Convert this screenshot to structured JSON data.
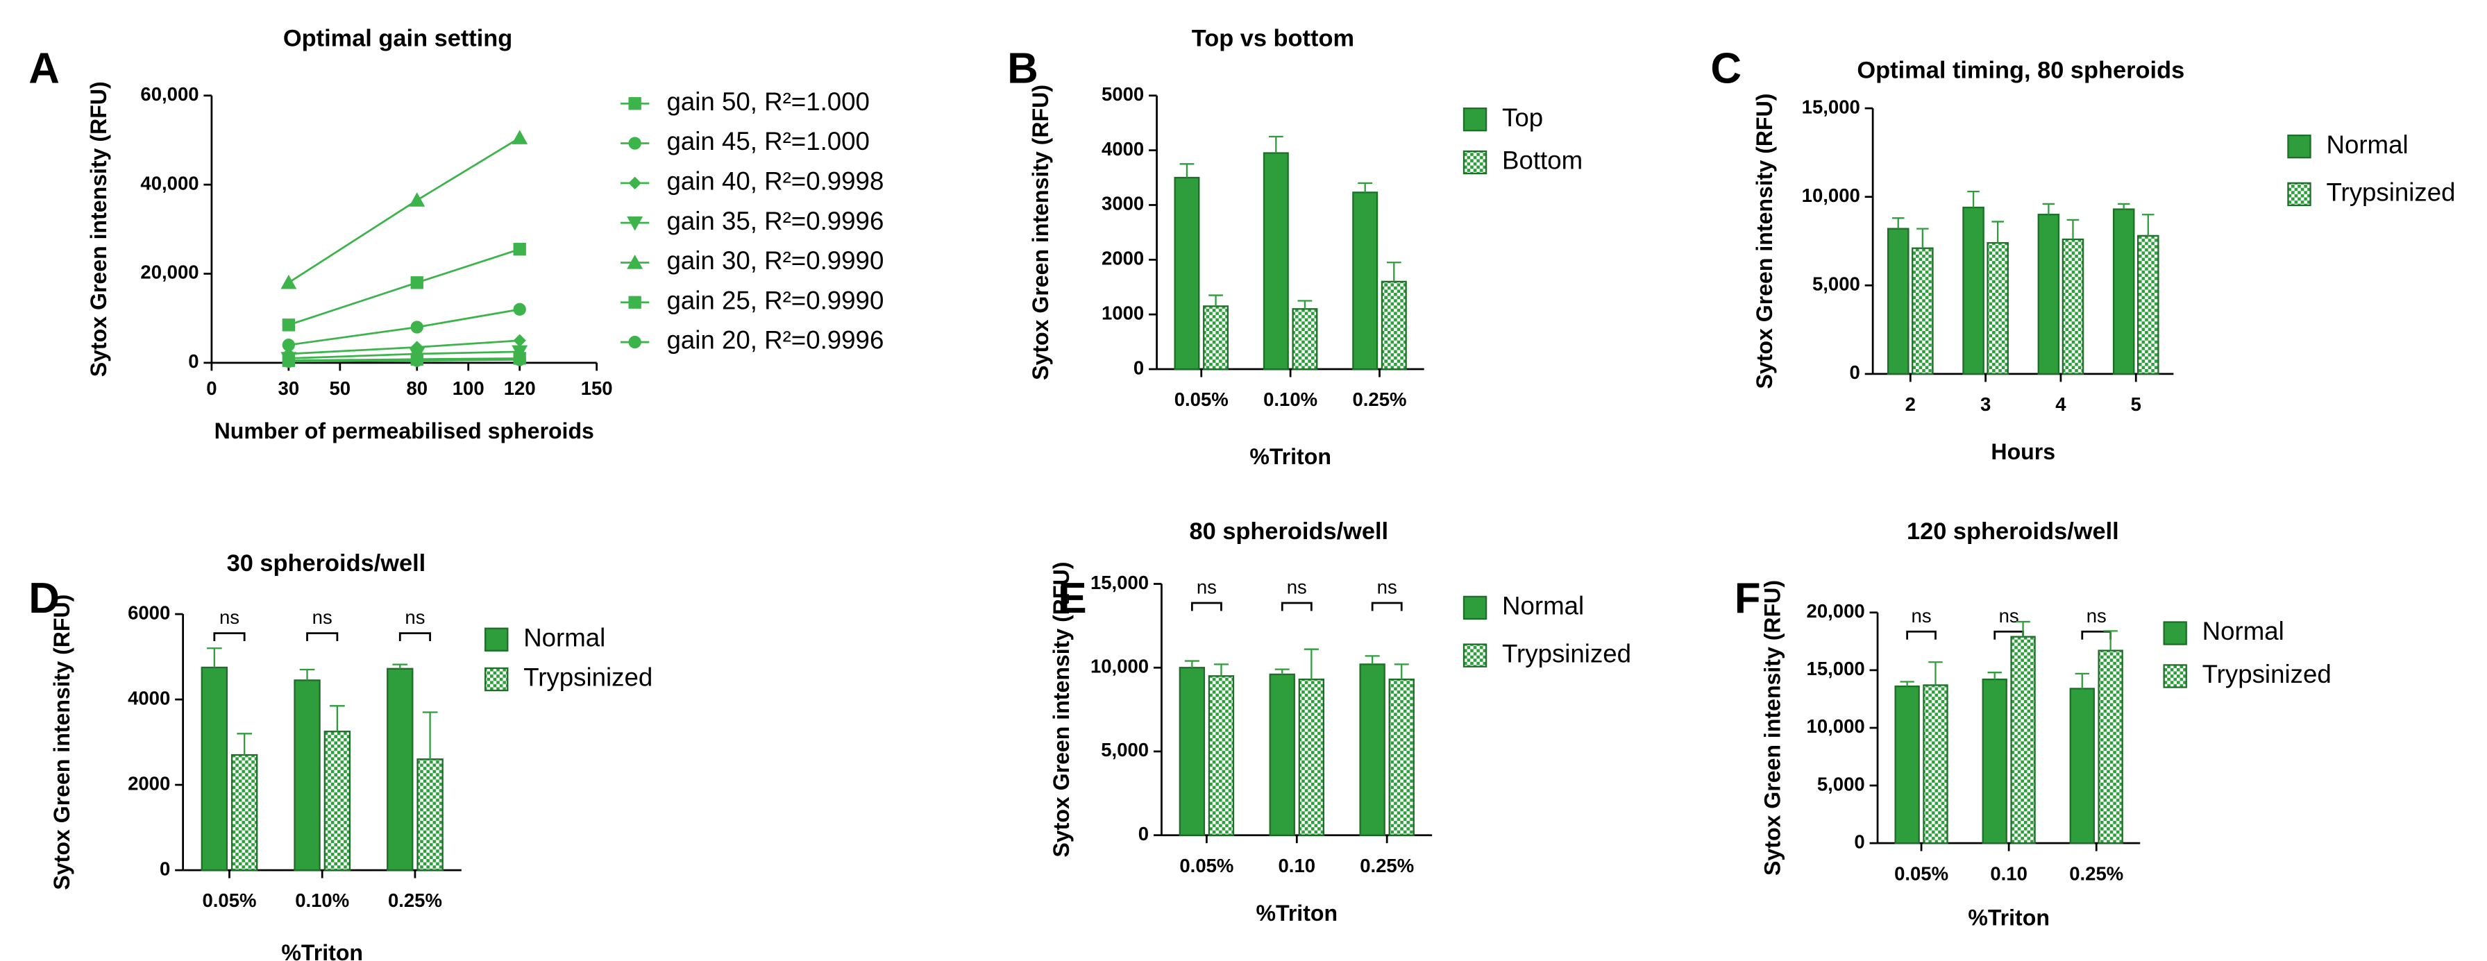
{
  "chart_data": [
    {
      "type": "line",
      "panel": "A",
      "title": "Optimal gain setting",
      "xlabel": "Number of permeabilised spheroids",
      "ylabel": "Sytox Green intensity (RFU)",
      "x": [
        30,
        80,
        120
      ],
      "xlim": [
        0,
        150
      ],
      "xticks": [
        0,
        30,
        50,
        80,
        100,
        120,
        150
      ],
      "ylim": [
        0,
        60000
      ],
      "yticks": [
        0,
        {
          "value": 20000,
          "label": "20,000"
        },
        {
          "value": 40000,
          "label": "40,000"
        },
        {
          "value": 60000,
          "label": "60,000"
        }
      ],
      "color": "#3cb44b",
      "series": [
        {
          "name": "gain 50, R²=1.000",
          "marker": "square",
          "values": [
            500,
            800,
            1000
          ]
        },
        {
          "name": "gain 45, R²=1.000",
          "marker": "circle",
          "values": [
            300,
            500,
            700
          ]
        },
        {
          "name": "gain 40, R²=0.9998",
          "marker": "diamond",
          "values": [
            2000,
            3500,
            5000
          ]
        },
        {
          "name": "gain 35, R²=0.9996",
          "marker": "triangle-down",
          "values": [
            1000,
            2000,
            2500
          ]
        },
        {
          "name": "gain 30, R²=0.9990",
          "marker": "triangle",
          "values": [
            18000,
            36500,
            50500
          ]
        },
        {
          "name": "gain 25, R²=0.9990",
          "marker": "square",
          "values": [
            8500,
            18000,
            25500
          ]
        },
        {
          "name": "gain 20, R²=0.9996",
          "marker": "circle",
          "values": [
            4000,
            8000,
            12000
          ]
        }
      ]
    },
    {
      "type": "bar",
      "panel": "B",
      "title": "Top vs bottom",
      "xlabel": "%Triton",
      "ylabel": "Sytox Green intensity (RFU)",
      "categories": [
        "0.05%",
        "0.10%",
        "0.25%"
      ],
      "ylim": [
        0,
        5000
      ],
      "yticks": [
        0,
        1000,
        2000,
        3000,
        4000,
        5000
      ],
      "series": [
        {
          "name": "Top",
          "color": "#2e9e3c",
          "pattern": "solid",
          "values": [
            3500,
            3950,
            3230
          ],
          "errors": [
            250,
            300,
            170
          ]
        },
        {
          "name": "Bottom",
          "color": "#2e9e3c",
          "pattern": "checker",
          "values": [
            1150,
            1100,
            1600
          ],
          "errors": [
            200,
            150,
            350
          ]
        }
      ]
    },
    {
      "type": "bar",
      "panel": "C",
      "title": "Optimal timing, 80 spheroids",
      "xlabel": "Hours",
      "ylabel": "Sytox Green intensity (RFU)",
      "categories": [
        "2",
        "3",
        "4",
        "5"
      ],
      "ylim": [
        0,
        15000
      ],
      "yticks": [
        0,
        {
          "value": 5000,
          "label": "5,000"
        },
        {
          "value": 10000,
          "label": "10,000"
        },
        {
          "value": 15000,
          "label": "15,000"
        }
      ],
      "series": [
        {
          "name": "Normal",
          "color": "#2e9e3c",
          "pattern": "solid",
          "values": [
            8200,
            9400,
            9000,
            9300
          ],
          "errors": [
            600,
            900,
            600,
            300
          ]
        },
        {
          "name": "Trypsinized",
          "color": "#2e9e3c",
          "pattern": "checker",
          "values": [
            7100,
            7400,
            7600,
            7800
          ],
          "errors": [
            1100,
            1200,
            1100,
            1200
          ]
        }
      ]
    },
    {
      "type": "bar",
      "panel": "D",
      "title": "30 spheroids/well",
      "xlabel": "%Triton",
      "ylabel": "Sytox Green intensity (RFU)",
      "categories": [
        "0.05%",
        "0.10%",
        "0.25%"
      ],
      "ylim": [
        0,
        6000
      ],
      "yticks": [
        0,
        2000,
        4000,
        6000
      ],
      "annotations": [
        "ns",
        "ns",
        "ns"
      ],
      "series": [
        {
          "name": "Normal",
          "color": "#2e9e3c",
          "pattern": "solid",
          "values": [
            4750,
            4450,
            4720
          ],
          "errors": [
            450,
            250,
            100
          ]
        },
        {
          "name": "Trypsinized",
          "color": "#2e9e3c",
          "pattern": "checker",
          "values": [
            2700,
            3250,
            2600
          ],
          "errors": [
            500,
            600,
            1100
          ]
        }
      ]
    },
    {
      "type": "bar",
      "panel": "E",
      "title": "80 spheroids/well",
      "xlabel": "%Triton",
      "ylabel": "Sytox Green intensity (RFU)",
      "categories": [
        "0.05%",
        "0.10",
        "0.25%"
      ],
      "ylim": [
        0,
        15000
      ],
      "yticks": [
        0,
        {
          "value": 5000,
          "label": "5,000"
        },
        {
          "value": 10000,
          "label": "10,000"
        },
        {
          "value": 15000,
          "label": "15,000"
        }
      ],
      "annotations": [
        "ns",
        "ns",
        "ns"
      ],
      "series": [
        {
          "name": "Normal",
          "color": "#2e9e3c",
          "pattern": "solid",
          "values": [
            10000,
            9600,
            10200
          ],
          "errors": [
            400,
            300,
            500
          ]
        },
        {
          "name": "Trypsinized",
          "color": "#2e9e3c",
          "pattern": "checker",
          "values": [
            9500,
            9300,
            9300
          ],
          "errors": [
            700,
            1800,
            900
          ]
        }
      ]
    },
    {
      "type": "bar",
      "panel": "F",
      "title": "120 spheroids/well",
      "xlabel": "%Triton",
      "ylabel": "Sytox Green intensity (RFU)",
      "categories": [
        "0.05%",
        "0.10",
        "0.25%"
      ],
      "ylim": [
        0,
        20000
      ],
      "yticks": [
        0,
        {
          "value": 5000,
          "label": "5,000"
        },
        {
          "value": 10000,
          "label": "10,000"
        },
        {
          "value": 15000,
          "label": "15,000"
        },
        {
          "value": 20000,
          "label": "20,000"
        }
      ],
      "annotations": [
        "ns",
        "ns",
        "ns"
      ],
      "series": [
        {
          "name": "Normal",
          "color": "#2e9e3c",
          "pattern": "solid",
          "values": [
            13600,
            14200,
            13400
          ],
          "errors": [
            400,
            600,
            1300
          ]
        },
        {
          "name": "Trypsinized",
          "color": "#2e9e3c",
          "pattern": "checker",
          "values": [
            13700,
            17900,
            16700
          ],
          "errors": [
            2000,
            1300,
            1700
          ]
        }
      ]
    }
  ]
}
